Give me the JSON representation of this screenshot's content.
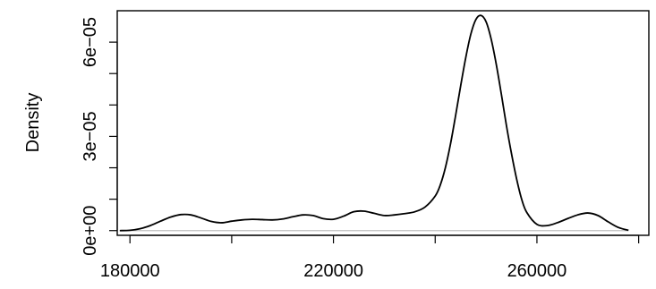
{
  "chart_data": {
    "type": "line",
    "title": "",
    "xlabel": "",
    "ylabel": "Density",
    "xlim": [
      177500,
      282000
    ],
    "ylim": [
      -1.5e-06,
      7e-05
    ],
    "x_ticks": [
      {
        "value": 180000,
        "label": "180000"
      },
      {
        "value": 200000,
        "label": ""
      },
      {
        "value": 220000,
        "label": "220000"
      },
      {
        "value": 240000,
        "label": ""
      },
      {
        "value": 260000,
        "label": "260000"
      },
      {
        "value": 280000,
        "label": ""
      }
    ],
    "y_ticks": [
      {
        "value": 0,
        "label": "0e+00"
      },
      {
        "value": 1e-05,
        "label": ""
      },
      {
        "value": 2e-05,
        "label": ""
      },
      {
        "value": 3e-05,
        "label": "3e−05"
      },
      {
        "value": 4e-05,
        "label": ""
      },
      {
        "value": 5e-05,
        "label": ""
      },
      {
        "value": 6e-05,
        "label": "6e−05"
      }
    ],
    "baseline": {
      "value": 0,
      "color": "#bebebe"
    },
    "line_color": "#000000",
    "x": [
      178000,
      180000,
      182000,
      184000,
      186000,
      188000,
      190000,
      192000,
      194000,
      196000,
      198000,
      200000,
      202000,
      204000,
      206000,
      208000,
      210000,
      212000,
      214000,
      216000,
      218000,
      220000,
      222000,
      224000,
      226000,
      228000,
      230000,
      232000,
      234000,
      236000,
      238000,
      240000,
      241000,
      242000,
      243000,
      244000,
      245000,
      246000,
      247000,
      248000,
      249000,
      250000,
      251000,
      252000,
      253000,
      254000,
      255000,
      256000,
      257000,
      258000,
      260000,
      262000,
      264000,
      266000,
      268000,
      270000,
      272000,
      274000,
      276000,
      278000
    ],
    "y": [
      0.0,
      1e-07,
      6e-07,
      1.6e-06,
      3e-06,
      4.3e-06,
      5.1e-06,
      5e-06,
      4e-06,
      2.9e-06,
      2.5e-06,
      3e-06,
      3.4e-06,
      3.6e-06,
      3.5e-06,
      3.4e-06,
      3.7e-06,
      4.4e-06,
      5e-06,
      4.8e-06,
      3.8e-06,
      3.6e-06,
      4.6e-06,
      6e-06,
      6.2e-06,
      5.5e-06,
      4.8e-06,
      5e-06,
      5.4e-06,
      6e-06,
      7.5e-06,
      1.1e-05,
      1.45e-05,
      2e-05,
      2.75e-05,
      3.65e-05,
      4.6e-05,
      5.5e-05,
      6.25e-05,
      6.72e-05,
      6.85e-05,
      6.65e-05,
      6.1e-05,
      5.3e-05,
      4.35e-05,
      3.35e-05,
      2.45e-05,
      1.65e-05,
      1e-05,
      5.8e-06,
      2e-06,
      1.6e-06,
      2.5e-06,
      3.8e-06,
      5e-06,
      5.6e-06,
      4.8e-06,
      2.8e-06,
      1e-06,
      1e-07
    ]
  }
}
